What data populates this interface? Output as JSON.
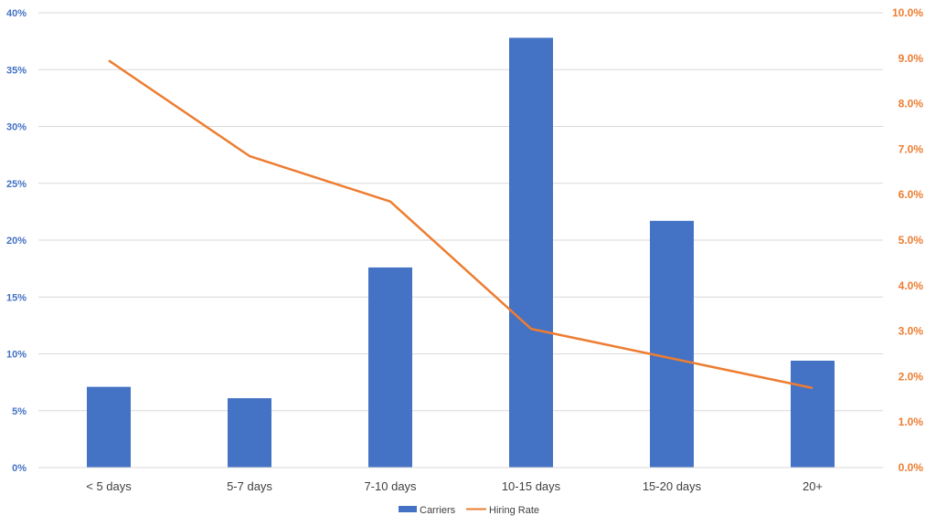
{
  "chart_data": {
    "type": "bar",
    "categories": [
      "< 5 days",
      "5-7 days",
      "7-10 days",
      "10-15 days",
      "15-20 days",
      "20+"
    ],
    "series": [
      {
        "name": "Carriers",
        "type": "bar",
        "axis": "left",
        "color": "#4472C4",
        "values": [
          7.1,
          6.1,
          17.6,
          37.8,
          21.7,
          9.4
        ]
      },
      {
        "name": "Hiring Rate",
        "type": "line",
        "axis": "right",
        "color": "#ED7D31",
        "values": [
          8.95,
          6.85,
          5.85,
          3.05,
          2.4,
          1.75
        ]
      }
    ],
    "y_left": {
      "ylim": [
        0,
        40
      ],
      "ticks": [
        0,
        5,
        10,
        15,
        20,
        25,
        30,
        35,
        40
      ],
      "tick_labels": [
        "0%",
        "5%",
        "10%",
        "15%",
        "20%",
        "25%",
        "30%",
        "35%",
        "40%"
      ],
      "color": "#4472C4"
    },
    "y_right": {
      "ylim": [
        0,
        10
      ],
      "ticks": [
        0,
        1,
        2,
        3,
        4,
        5,
        6,
        7,
        8,
        9,
        10
      ],
      "tick_labels": [
        "0.0%",
        "1.0%",
        "2.0%",
        "3.0%",
        "4.0%",
        "5.0%",
        "6.0%",
        "7.0%",
        "8.0%",
        "9.0%",
        "10.0%"
      ],
      "color": "#ED7D31"
    },
    "grid": true,
    "legend": {
      "position": "bottom",
      "entries": [
        "Carriers",
        "Hiring Rate"
      ]
    },
    "title": "",
    "xlabel": "",
    "ylabel": ""
  }
}
